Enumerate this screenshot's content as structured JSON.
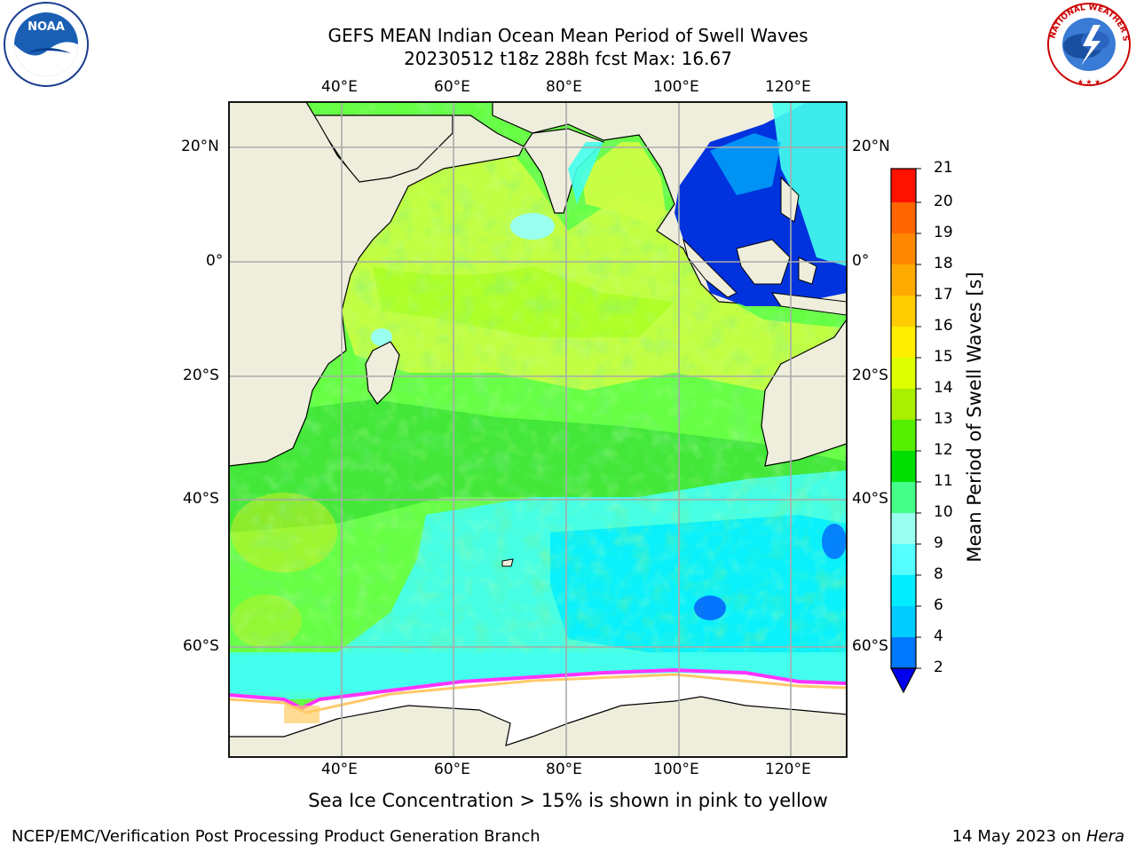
{
  "title_line1": "GEFS MEAN Indian Ocean Mean Period of Swell Waves",
  "title_line2": "20230512 t18z 288h fcst   Max: 16.67",
  "subtitle": "Sea Ice Concentration > 15% is shown in pink to yellow",
  "footer_left": "NCEP/EMC/Verification Post Processing Product Generation Branch",
  "footer_right_date": "14 May 2023 on ",
  "footer_right_machine": "Hera",
  "colorbar": {
    "label": "Mean Period of Swell Waves [s]",
    "ticks": [
      "2",
      "4",
      "6",
      "8",
      "9",
      "10",
      "11",
      "12",
      "13",
      "14",
      "15",
      "16",
      "17",
      "18",
      "19",
      "20",
      "21"
    ],
    "colors": [
      "#0055ff",
      "#00aaff",
      "#00eeff",
      "#44ffff",
      "#99ffee",
      "#44ff88",
      "#00dd00",
      "#55ee00",
      "#99ee00",
      "#ccff00",
      "#eeee00",
      "#ffee00",
      "#ffbb00",
      "#ff9900",
      "#ff7700",
      "#ff4400",
      "#ff0000"
    ],
    "under_color": "#0000ee"
  },
  "lon_labels": [
    "40°E",
    "60°E",
    "80°E",
    "100°E",
    "120°E"
  ],
  "lat_labels_left": [
    "20°N",
    "0°",
    "20°S",
    "40°S",
    "60°S"
  ],
  "lat_labels_right": [
    "20°N",
    "0°",
    "20°S",
    "40°S",
    "60°S"
  ],
  "logos": {
    "noaa": {
      "text": "NOAA",
      "ring": "NATIONAL OCEANIC AND ATMOSPHERIC ADMINISTRATION · U.S. DEPARTMENT OF COMMERCE"
    },
    "nws": {
      "text": "NATIONAL WEATHER SERVICE"
    }
  },
  "map_colors": {
    "land": "#efeedd",
    "ice": "#ffffff",
    "ice_edge": "#ff33ff",
    "swell_main": "#66ff44",
    "swell_tropical": "#ccff44",
    "swell_south": "#44ffee",
    "swell_low": "#0033dd"
  }
}
